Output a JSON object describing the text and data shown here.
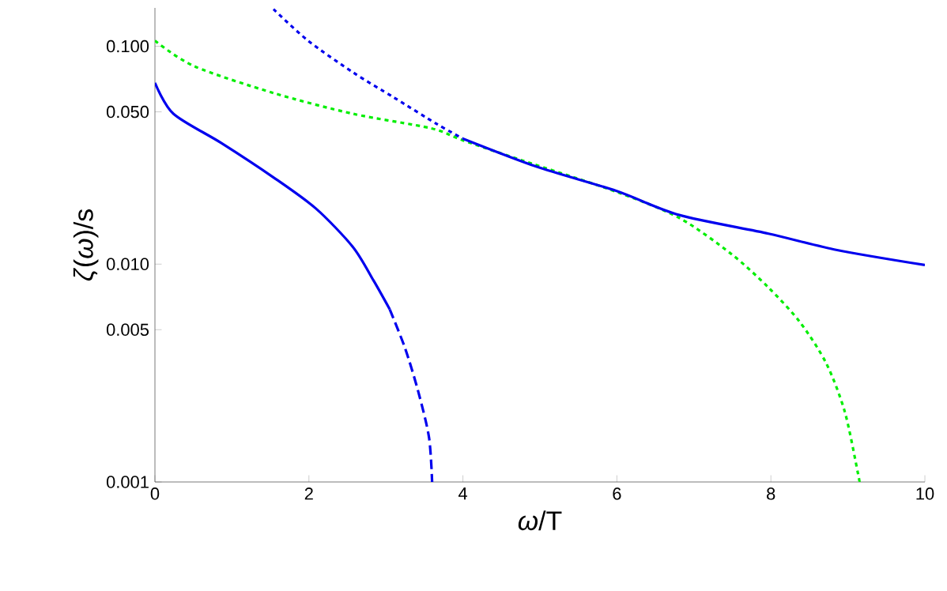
{
  "chart_data": {
    "type": "line",
    "xlabel": "*ω*/T",
    "ylabel": "*ζ*(*ω*)/s",
    "log": "y",
    "xlim": [
      0,
      10
    ],
    "ylim": [
      0.001,
      0.15
    ],
    "xticks": [
      0,
      2,
      4,
      6,
      8,
      10
    ],
    "yticks": [
      0.001,
      0.005,
      {
        "value": 0.01,
        "label": "0.010"
      },
      {
        "value": 0.05,
        "label": "0.050"
      },
      {
        "value": 0.1,
        "label": "0.100"
      }
    ],
    "series": [
      {
        "color": "#0000ee",
        "line_style": "solid",
        "x": [
          0,
          0.24,
          0.86,
          1.54,
          2.09,
          2.57,
          2.84,
          3.05
        ],
        "values": [
          0.068,
          0.049,
          0.036,
          0.025,
          0.018,
          0.012,
          0.0084,
          0.0062
        ]
      },
      {
        "color": "#0000ee",
        "line_style": "dashed",
        "x": [
          3.05,
          3.25,
          3.42,
          3.56,
          3.6
        ],
        "values": [
          0.0062,
          0.0041,
          0.0026,
          0.0016,
          0.001
        ]
      },
      {
        "color": "#00ee00",
        "line_style": "dotted",
        "x": [
          0,
          0.51,
          1.54,
          2.57,
          3.59,
          4.0,
          4.76,
          5.99,
          6.81,
          7.49,
          7.97,
          8.38,
          8.72,
          8.96,
          9.13,
          9.15
        ],
        "values": [
          0.106,
          0.081,
          0.061,
          0.049,
          0.042,
          0.037,
          0.03,
          0.0215,
          0.0163,
          0.0111,
          0.0078,
          0.0054,
          0.0035,
          0.0021,
          0.0011,
          0.001
        ]
      },
      {
        "color": "#0000ee",
        "line_style": "dotted",
        "x": [
          1.54,
          1.99,
          2.57,
          3.11,
          3.66,
          4.0
        ],
        "values": [
          0.148,
          0.106,
          0.076,
          0.058,
          0.044,
          0.0377
        ]
      },
      {
        "color": "#0000ee",
        "line_style": "solid",
        "x": [
          4.0,
          4.96,
          5.99,
          6.81,
          7.97,
          8.86,
          10
        ],
        "values": [
          0.0377,
          0.028,
          0.0217,
          0.0168,
          0.0138,
          0.0116,
          0.0099
        ]
      }
    ]
  }
}
